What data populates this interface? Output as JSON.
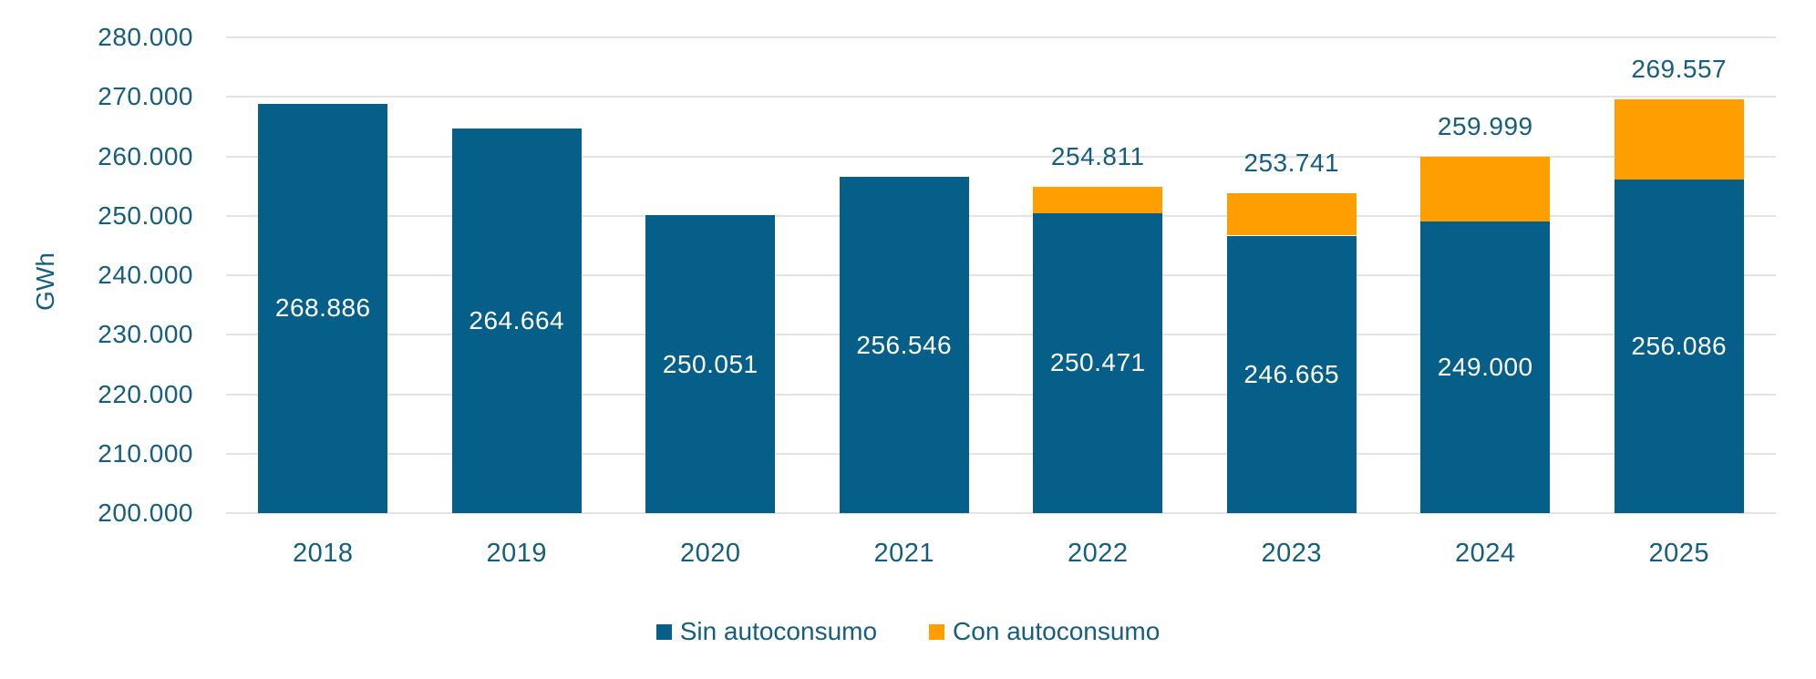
{
  "chart_data": {
    "type": "bar",
    "stacked": true,
    "title": "",
    "ylabel": "GWh",
    "xlabel": "",
    "grid": true,
    "legend_position": "bottom",
    "categories": [
      "2018",
      "2019",
      "2020",
      "2021",
      "2022",
      "2023",
      "2024",
      "2025"
    ],
    "series": [
      {
        "name": "Sin autoconsumo",
        "color": "#065F88",
        "values": [
          268886,
          264664,
          250051,
          256546,
          250471,
          246665,
          249000,
          256086
        ],
        "labels": [
          "268.886",
          "264.664",
          "250.051",
          "256.546",
          "250.471",
          "246.665",
          "249.000",
          "256.086"
        ]
      },
      {
        "name": "Con autoconsumo",
        "color": "#FF9E00",
        "values": [
          0,
          0,
          0,
          0,
          4340,
          7076,
          10999,
          13471
        ],
        "labels": [
          "",
          "",
          "",
          "",
          "",
          "",
          "",
          ""
        ]
      }
    ],
    "total_labels": [
      "",
      "",
      "",
      "",
      "254.811",
      "253.741",
      "259.999",
      "269.557"
    ],
    "y_axis": {
      "min": 200000,
      "max": 280000,
      "step": 10000,
      "tick_labels": [
        "280.000",
        "270.000",
        "260.000",
        "250.000",
        "240.000",
        "230.000",
        "220.000",
        "210.000",
        "200.000"
      ]
    },
    "legend": [
      {
        "label": "Sin autoconsumo",
        "color": "#065F88"
      },
      {
        "label": "Con autoconsumo",
        "color": "#FF9E00"
      }
    ]
  },
  "colors": {
    "axis_text": "#155E7D",
    "gridline": "#E3E3E3",
    "bar_label_text": "#FFFFFF",
    "total_label_text": "#155E7D"
  }
}
